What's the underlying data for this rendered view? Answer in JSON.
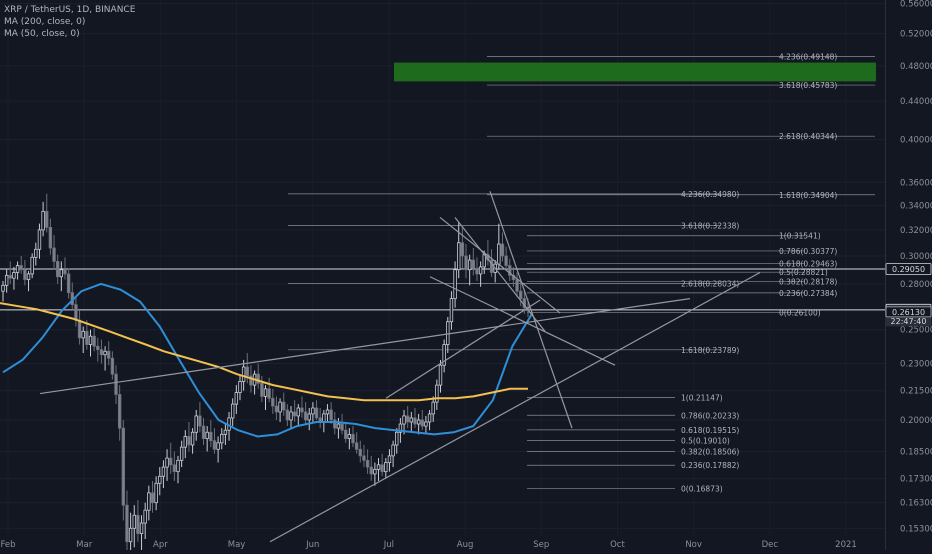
{
  "chart_data": {
    "type": "candlestick",
    "title": "XRP / TetherUS, 1D, BINANCE",
    "indicators": [
      {
        "name": "MA (200, close, 0)",
        "color": "#f2c14e"
      },
      {
        "name": "MA (50, close, 0)",
        "color": "#2e8fd8"
      }
    ],
    "x_axis": {
      "ticks": [
        "Feb",
        "Mar",
        "Apr",
        "May",
        "Jun",
        "Jul",
        "Aug",
        "Sep",
        "Oct",
        "Nov",
        "Dec",
        "2021"
      ]
    },
    "y_axis": {
      "scale": "log",
      "range": [
        0.145,
        0.565
      ],
      "ticks": [
        "0.56000",
        "0.52000",
        "0.48000",
        "0.44000",
        "0.40000",
        "0.36000",
        "0.34000",
        "0.32000",
        "0.30000",
        "0.28000",
        "0.25000",
        "0.23000",
        "0.21500",
        "0.20000",
        "0.18500",
        "0.17300",
        "0.16300",
        "0.15300"
      ]
    },
    "price_labels": [
      {
        "value": 0.2905,
        "text": "0.29050",
        "style": "outline"
      },
      {
        "value": 0.26261,
        "text": "0.26261",
        "style": "current"
      },
      {
        "value": 0.2555,
        "text": "22:47:40",
        "style": "countdown"
      },
      {
        "value": 0.2613,
        "text": "0.26130",
        "style": "outline-small"
      }
    ],
    "horizontal_lines": [
      0.2905,
      0.26261
    ],
    "target_zone": {
      "from": 0.462,
      "to": 0.484,
      "color": "#1e6b1e"
    },
    "fib_sets": [
      {
        "name": "fib-upper-extension",
        "levels": [
          {
            "text": "4.236(0.49148)",
            "value": 0.49148
          },
          {
            "text": "3.618(0.45783)",
            "value": 0.45783
          },
          {
            "text": "2.618(0.40344)",
            "value": 0.40344
          },
          {
            "text": "1.618(0.34904)",
            "value": 0.34904
          }
        ]
      },
      {
        "name": "fib-mid-extension",
        "levels": [
          {
            "text": "4.236(0.34980)",
            "value": 0.3498
          },
          {
            "text": "3.618(0.32338)",
            "value": 0.32338
          },
          {
            "text": "2.618(0.28034)",
            "value": 0.28034
          },
          {
            "text": "1.618(0.23789)",
            "value": 0.23789
          }
        ]
      },
      {
        "name": "fib-retracement-upper",
        "levels": [
          {
            "text": "1(0.31541)",
            "value": 0.31541
          },
          {
            "text": "0.786(0.30377)",
            "value": 0.30377
          },
          {
            "text": "0.618(0.29463)",
            "value": 0.29463
          },
          {
            "text": "0.5(0.28821)",
            "value": 0.28821
          },
          {
            "text": "0.382(0.28178)",
            "value": 0.28178
          },
          {
            "text": "0.236(0.27384)",
            "value": 0.27384
          },
          {
            "text": "0(0.26100)",
            "value": 0.261
          }
        ]
      },
      {
        "name": "fib-retracement-lower",
        "levels": [
          {
            "text": "1(0.21147)",
            "value": 0.21147
          },
          {
            "text": "0.786(0.20233)",
            "value": 0.20233
          },
          {
            "text": "0.618(0.19515)",
            "value": 0.19515
          },
          {
            "text": "0.5(0.19010)",
            "value": 0.1901
          },
          {
            "text": "0.382(0.18506)",
            "value": 0.18506
          },
          {
            "text": "0.236(0.17882)",
            "value": 0.17882
          },
          {
            "text": "0(0.16873)",
            "value": 0.16873
          }
        ]
      }
    ],
    "candles": [
      [
        0.275,
        0.282,
        0.268,
        0.279
      ],
      [
        0.279,
        0.29,
        0.274,
        0.286
      ],
      [
        0.286,
        0.296,
        0.28,
        0.284
      ],
      [
        0.284,
        0.292,
        0.276,
        0.288
      ],
      [
        0.288,
        0.296,
        0.283,
        0.293
      ],
      [
        0.293,
        0.3,
        0.287,
        0.29
      ],
      [
        0.29,
        0.297,
        0.279,
        0.283
      ],
      [
        0.283,
        0.289,
        0.275,
        0.287
      ],
      [
        0.287,
        0.302,
        0.284,
        0.299
      ],
      [
        0.299,
        0.31,
        0.293,
        0.305
      ],
      [
        0.305,
        0.325,
        0.298,
        0.32
      ],
      [
        0.32,
        0.343,
        0.315,
        0.335
      ],
      [
        0.335,
        0.35,
        0.318,
        0.322
      ],
      [
        0.322,
        0.329,
        0.301,
        0.306
      ],
      [
        0.306,
        0.316,
        0.29,
        0.296
      ],
      [
        0.296,
        0.301,
        0.28,
        0.285
      ],
      [
        0.285,
        0.296,
        0.275,
        0.29
      ],
      [
        0.29,
        0.299,
        0.283,
        0.287
      ],
      [
        0.287,
        0.291,
        0.27,
        0.274
      ],
      [
        0.274,
        0.281,
        0.262,
        0.266
      ],
      [
        0.266,
        0.271,
        0.252,
        0.256
      ],
      [
        0.256,
        0.262,
        0.241,
        0.245
      ],
      [
        0.245,
        0.252,
        0.236,
        0.249
      ],
      [
        0.249,
        0.256,
        0.238,
        0.241
      ],
      [
        0.241,
        0.25,
        0.234,
        0.246
      ],
      [
        0.246,
        0.251,
        0.237,
        0.24
      ],
      [
        0.24,
        0.245,
        0.231,
        0.238
      ],
      [
        0.238,
        0.244,
        0.23,
        0.235
      ],
      [
        0.235,
        0.24,
        0.226,
        0.237
      ],
      [
        0.237,
        0.243,
        0.229,
        0.233
      ],
      [
        0.233,
        0.237,
        0.221,
        0.224
      ],
      [
        0.224,
        0.229,
        0.208,
        0.213
      ],
      [
        0.213,
        0.218,
        0.19,
        0.196
      ],
      [
        0.196,
        0.2,
        0.156,
        0.162
      ],
      [
        0.162,
        0.168,
        0.142,
        0.148
      ],
      [
        0.148,
        0.159,
        0.142,
        0.153
      ],
      [
        0.153,
        0.162,
        0.146,
        0.158
      ],
      [
        0.158,
        0.164,
        0.148,
        0.151
      ],
      [
        0.151,
        0.158,
        0.144,
        0.155
      ],
      [
        0.155,
        0.163,
        0.149,
        0.16
      ],
      [
        0.16,
        0.17,
        0.156,
        0.167
      ],
      [
        0.167,
        0.172,
        0.159,
        0.163
      ],
      [
        0.163,
        0.174,
        0.16,
        0.171
      ],
      [
        0.171,
        0.178,
        0.166,
        0.174
      ],
      [
        0.174,
        0.181,
        0.169,
        0.178
      ],
      [
        0.178,
        0.186,
        0.172,
        0.182
      ],
      [
        0.182,
        0.189,
        0.175,
        0.179
      ],
      [
        0.179,
        0.185,
        0.172,
        0.176
      ],
      [
        0.176,
        0.183,
        0.171,
        0.181
      ],
      [
        0.181,
        0.19,
        0.178,
        0.187
      ],
      [
        0.187,
        0.195,
        0.182,
        0.192
      ],
      [
        0.192,
        0.199,
        0.185,
        0.188
      ],
      [
        0.188,
        0.196,
        0.184,
        0.194
      ],
      [
        0.194,
        0.205,
        0.19,
        0.202
      ],
      [
        0.202,
        0.209,
        0.194,
        0.197
      ],
      [
        0.197,
        0.201,
        0.188,
        0.191
      ],
      [
        0.191,
        0.197,
        0.185,
        0.194
      ],
      [
        0.194,
        0.2,
        0.187,
        0.19
      ],
      [
        0.19,
        0.196,
        0.184,
        0.186
      ],
      [
        0.186,
        0.192,
        0.18,
        0.189
      ],
      [
        0.189,
        0.196,
        0.186,
        0.193
      ],
      [
        0.193,
        0.198,
        0.188,
        0.195
      ],
      [
        0.195,
        0.204,
        0.19,
        0.201
      ],
      [
        0.201,
        0.211,
        0.197,
        0.208
      ],
      [
        0.208,
        0.218,
        0.203,
        0.214
      ],
      [
        0.214,
        0.224,
        0.21,
        0.22
      ],
      [
        0.22,
        0.232,
        0.215,
        0.228
      ],
      [
        0.228,
        0.236,
        0.219,
        0.223
      ],
      [
        0.223,
        0.229,
        0.214,
        0.218
      ],
      [
        0.218,
        0.226,
        0.213,
        0.224
      ],
      [
        0.224,
        0.23,
        0.216,
        0.219
      ],
      [
        0.219,
        0.223,
        0.209,
        0.212
      ],
      [
        0.212,
        0.218,
        0.205,
        0.216
      ],
      [
        0.216,
        0.222,
        0.209,
        0.211
      ],
      [
        0.211,
        0.216,
        0.203,
        0.207
      ],
      [
        0.207,
        0.212,
        0.2,
        0.204
      ],
      [
        0.204,
        0.211,
        0.199,
        0.209
      ],
      [
        0.209,
        0.214,
        0.202,
        0.205
      ],
      [
        0.205,
        0.208,
        0.197,
        0.2
      ],
      [
        0.2,
        0.207,
        0.196,
        0.204
      ],
      [
        0.204,
        0.21,
        0.199,
        0.202
      ],
      [
        0.202,
        0.208,
        0.197,
        0.206
      ],
      [
        0.206,
        0.212,
        0.201,
        0.204
      ],
      [
        0.204,
        0.209,
        0.198,
        0.2
      ],
      [
        0.2,
        0.206,
        0.195,
        0.203
      ],
      [
        0.203,
        0.209,
        0.199,
        0.206
      ],
      [
        0.206,
        0.21,
        0.2,
        0.201
      ],
      [
        0.201,
        0.206,
        0.196,
        0.199
      ],
      [
        0.199,
        0.205,
        0.194,
        0.203
      ],
      [
        0.203,
        0.208,
        0.199,
        0.205
      ],
      [
        0.205,
        0.209,
        0.198,
        0.2
      ],
      [
        0.2,
        0.204,
        0.193,
        0.196
      ],
      [
        0.196,
        0.201,
        0.191,
        0.198
      ],
      [
        0.198,
        0.203,
        0.193,
        0.195
      ],
      [
        0.195,
        0.199,
        0.189,
        0.191
      ],
      [
        0.191,
        0.196,
        0.186,
        0.193
      ],
      [
        0.193,
        0.197,
        0.187,
        0.189
      ],
      [
        0.189,
        0.194,
        0.184,
        0.186
      ],
      [
        0.186,
        0.19,
        0.18,
        0.183
      ],
      [
        0.183,
        0.188,
        0.178,
        0.181
      ],
      [
        0.181,
        0.186,
        0.175,
        0.178
      ],
      [
        0.178,
        0.183,
        0.172,
        0.175
      ],
      [
        0.175,
        0.18,
        0.17,
        0.177
      ],
      [
        0.177,
        0.182,
        0.172,
        0.179
      ],
      [
        0.179,
        0.184,
        0.174,
        0.176
      ],
      [
        0.176,
        0.182,
        0.173,
        0.18
      ],
      [
        0.18,
        0.186,
        0.176,
        0.183
      ],
      [
        0.183,
        0.19,
        0.178,
        0.188
      ],
      [
        0.188,
        0.196,
        0.184,
        0.194
      ],
      [
        0.194,
        0.201,
        0.189,
        0.198
      ],
      [
        0.198,
        0.205,
        0.193,
        0.202
      ],
      [
        0.202,
        0.207,
        0.196,
        0.199
      ],
      [
        0.199,
        0.204,
        0.194,
        0.201
      ],
      [
        0.201,
        0.206,
        0.196,
        0.198
      ],
      [
        0.198,
        0.203,
        0.193,
        0.2
      ],
      [
        0.2,
        0.205,
        0.195,
        0.197
      ],
      [
        0.197,
        0.202,
        0.193,
        0.199
      ],
      [
        0.199,
        0.205,
        0.195,
        0.203
      ],
      [
        0.203,
        0.212,
        0.199,
        0.209
      ],
      [
        0.209,
        0.221,
        0.205,
        0.218
      ],
      [
        0.218,
        0.232,
        0.214,
        0.229
      ],
      [
        0.229,
        0.244,
        0.225,
        0.241
      ],
      [
        0.241,
        0.258,
        0.236,
        0.255
      ],
      [
        0.255,
        0.275,
        0.25,
        0.27
      ],
      [
        0.27,
        0.296,
        0.264,
        0.29
      ],
      [
        0.29,
        0.326,
        0.284,
        0.31
      ],
      [
        0.31,
        0.322,
        0.291,
        0.3
      ],
      [
        0.3,
        0.309,
        0.284,
        0.29
      ],
      [
        0.29,
        0.301,
        0.279,
        0.297
      ],
      [
        0.297,
        0.306,
        0.286,
        0.291
      ],
      [
        0.291,
        0.299,
        0.282,
        0.287
      ],
      [
        0.287,
        0.296,
        0.278,
        0.292
      ],
      [
        0.292,
        0.304,
        0.287,
        0.301
      ],
      [
        0.301,
        0.312,
        0.293,
        0.297
      ],
      [
        0.297,
        0.305,
        0.285,
        0.288
      ],
      [
        0.288,
        0.297,
        0.281,
        0.294
      ],
      [
        0.294,
        0.325,
        0.29,
        0.309
      ],
      [
        0.309,
        0.318,
        0.296,
        0.3
      ],
      [
        0.3,
        0.307,
        0.29,
        0.293
      ],
      [
        0.293,
        0.298,
        0.282,
        0.286
      ],
      [
        0.286,
        0.292,
        0.278,
        0.283
      ],
      [
        0.283,
        0.288,
        0.271,
        0.275
      ],
      [
        0.275,
        0.281,
        0.265,
        0.27
      ],
      [
        0.27,
        0.276,
        0.26,
        0.264
      ],
      [
        0.264,
        0.27,
        0.258,
        0.262
      ]
    ],
    "ma50": [
      0.225,
      0.232,
      0.245,
      0.262,
      0.275,
      0.28,
      0.276,
      0.268,
      0.252,
      0.232,
      0.214,
      0.2,
      0.195,
      0.192,
      0.193,
      0.197,
      0.199,
      0.199,
      0.198,
      0.196,
      0.195,
      0.194,
      0.193,
      0.194,
      0.197,
      0.21,
      0.24,
      0.26
    ],
    "ma200": [
      0.267,
      0.265,
      0.263,
      0.26,
      0.257,
      0.253,
      0.249,
      0.245,
      0.241,
      0.237,
      0.234,
      0.231,
      0.228,
      0.224,
      0.221,
      0.218,
      0.216,
      0.214,
      0.212,
      0.211,
      0.21,
      0.21,
      0.21,
      0.21,
      0.211,
      0.211,
      0.212,
      0.214,
      0.216,
      0.216
    ]
  }
}
